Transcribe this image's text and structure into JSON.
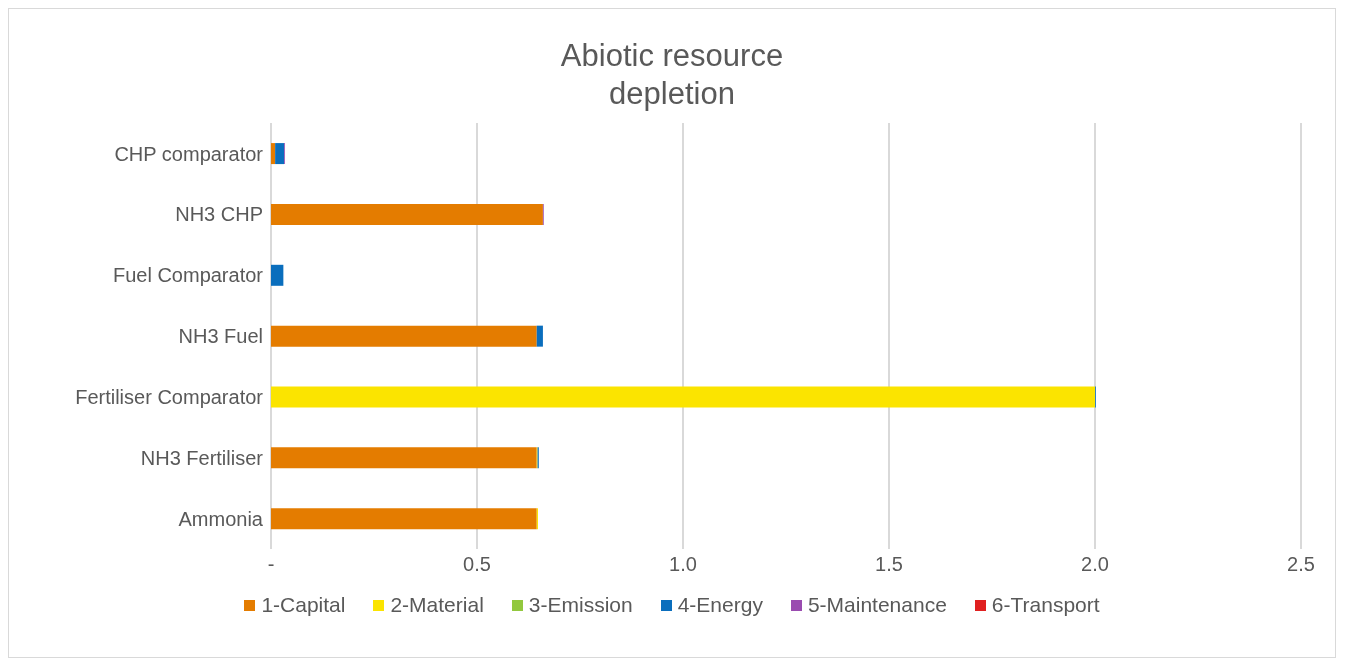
{
  "chart_data": {
    "type": "bar",
    "orientation": "horizontal",
    "stacked": true,
    "title": "Abiotic resource depletion",
    "categories": [
      "CHP comparator",
      "NH3 CHP",
      "Fuel Comparator",
      "NH3 Fuel",
      "Fertiliser Comparator",
      "NH3 Fertiliser",
      "Ammonia"
    ],
    "series": [
      {
        "name": "1-Capital",
        "color": "#e47c00",
        "values": [
          0.01,
          0.66,
          0,
          0.645,
          0,
          0.645,
          0.645
        ]
      },
      {
        "name": "2-Material",
        "color": "#fbe400",
        "values": [
          0,
          0,
          0,
          0,
          2.0,
          0.002,
          0.003
        ]
      },
      {
        "name": "3-Emission",
        "color": "#92c83e",
        "values": [
          0,
          0,
          0,
          0,
          0,
          0,
          0
        ]
      },
      {
        "name": "4-Energy",
        "color": "#0a6ebd",
        "values": [
          0.022,
          0,
          0.03,
          0.015,
          0.002,
          0.003,
          0
        ]
      },
      {
        "name": "5-Maintenance",
        "color": "#9a4cb0",
        "values": [
          0.002,
          0.002,
          0,
          0,
          0,
          0,
          0
        ]
      },
      {
        "name": "6-Transport",
        "color": "#e02020",
        "values": [
          0,
          0,
          0,
          0,
          0,
          0,
          0
        ]
      }
    ],
    "xlim": [
      0,
      2.5
    ],
    "xticks": [
      {
        "value": 0,
        "label": "-"
      },
      0.5,
      {
        "value": 1,
        "label": "1.0"
      },
      1.5,
      {
        "value": 2,
        "label": "2.0"
      },
      2.5
    ],
    "grid": "x",
    "legend": "bottom"
  }
}
